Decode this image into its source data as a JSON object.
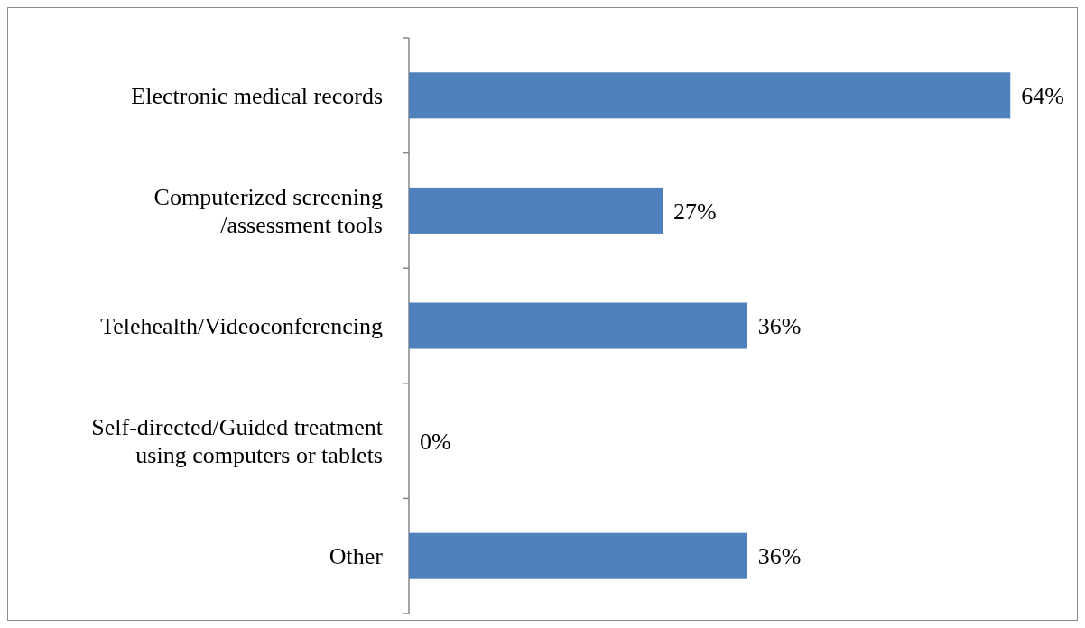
{
  "chart_data": {
    "type": "bar",
    "orientation": "horizontal",
    "categories": [
      "Electronic medical records",
      "Computerized screening\n/assessment tools",
      "Telehealth/Videoconferencing",
      "Self-directed/Guided treatment\nusing computers or tablets",
      "Other"
    ],
    "values": [
      64,
      27,
      36,
      0,
      36
    ],
    "value_labels": [
      "64%",
      "27%",
      "36%",
      "0%",
      "36%"
    ],
    "color": "#4f81bd",
    "tick_labels": "y"
  }
}
